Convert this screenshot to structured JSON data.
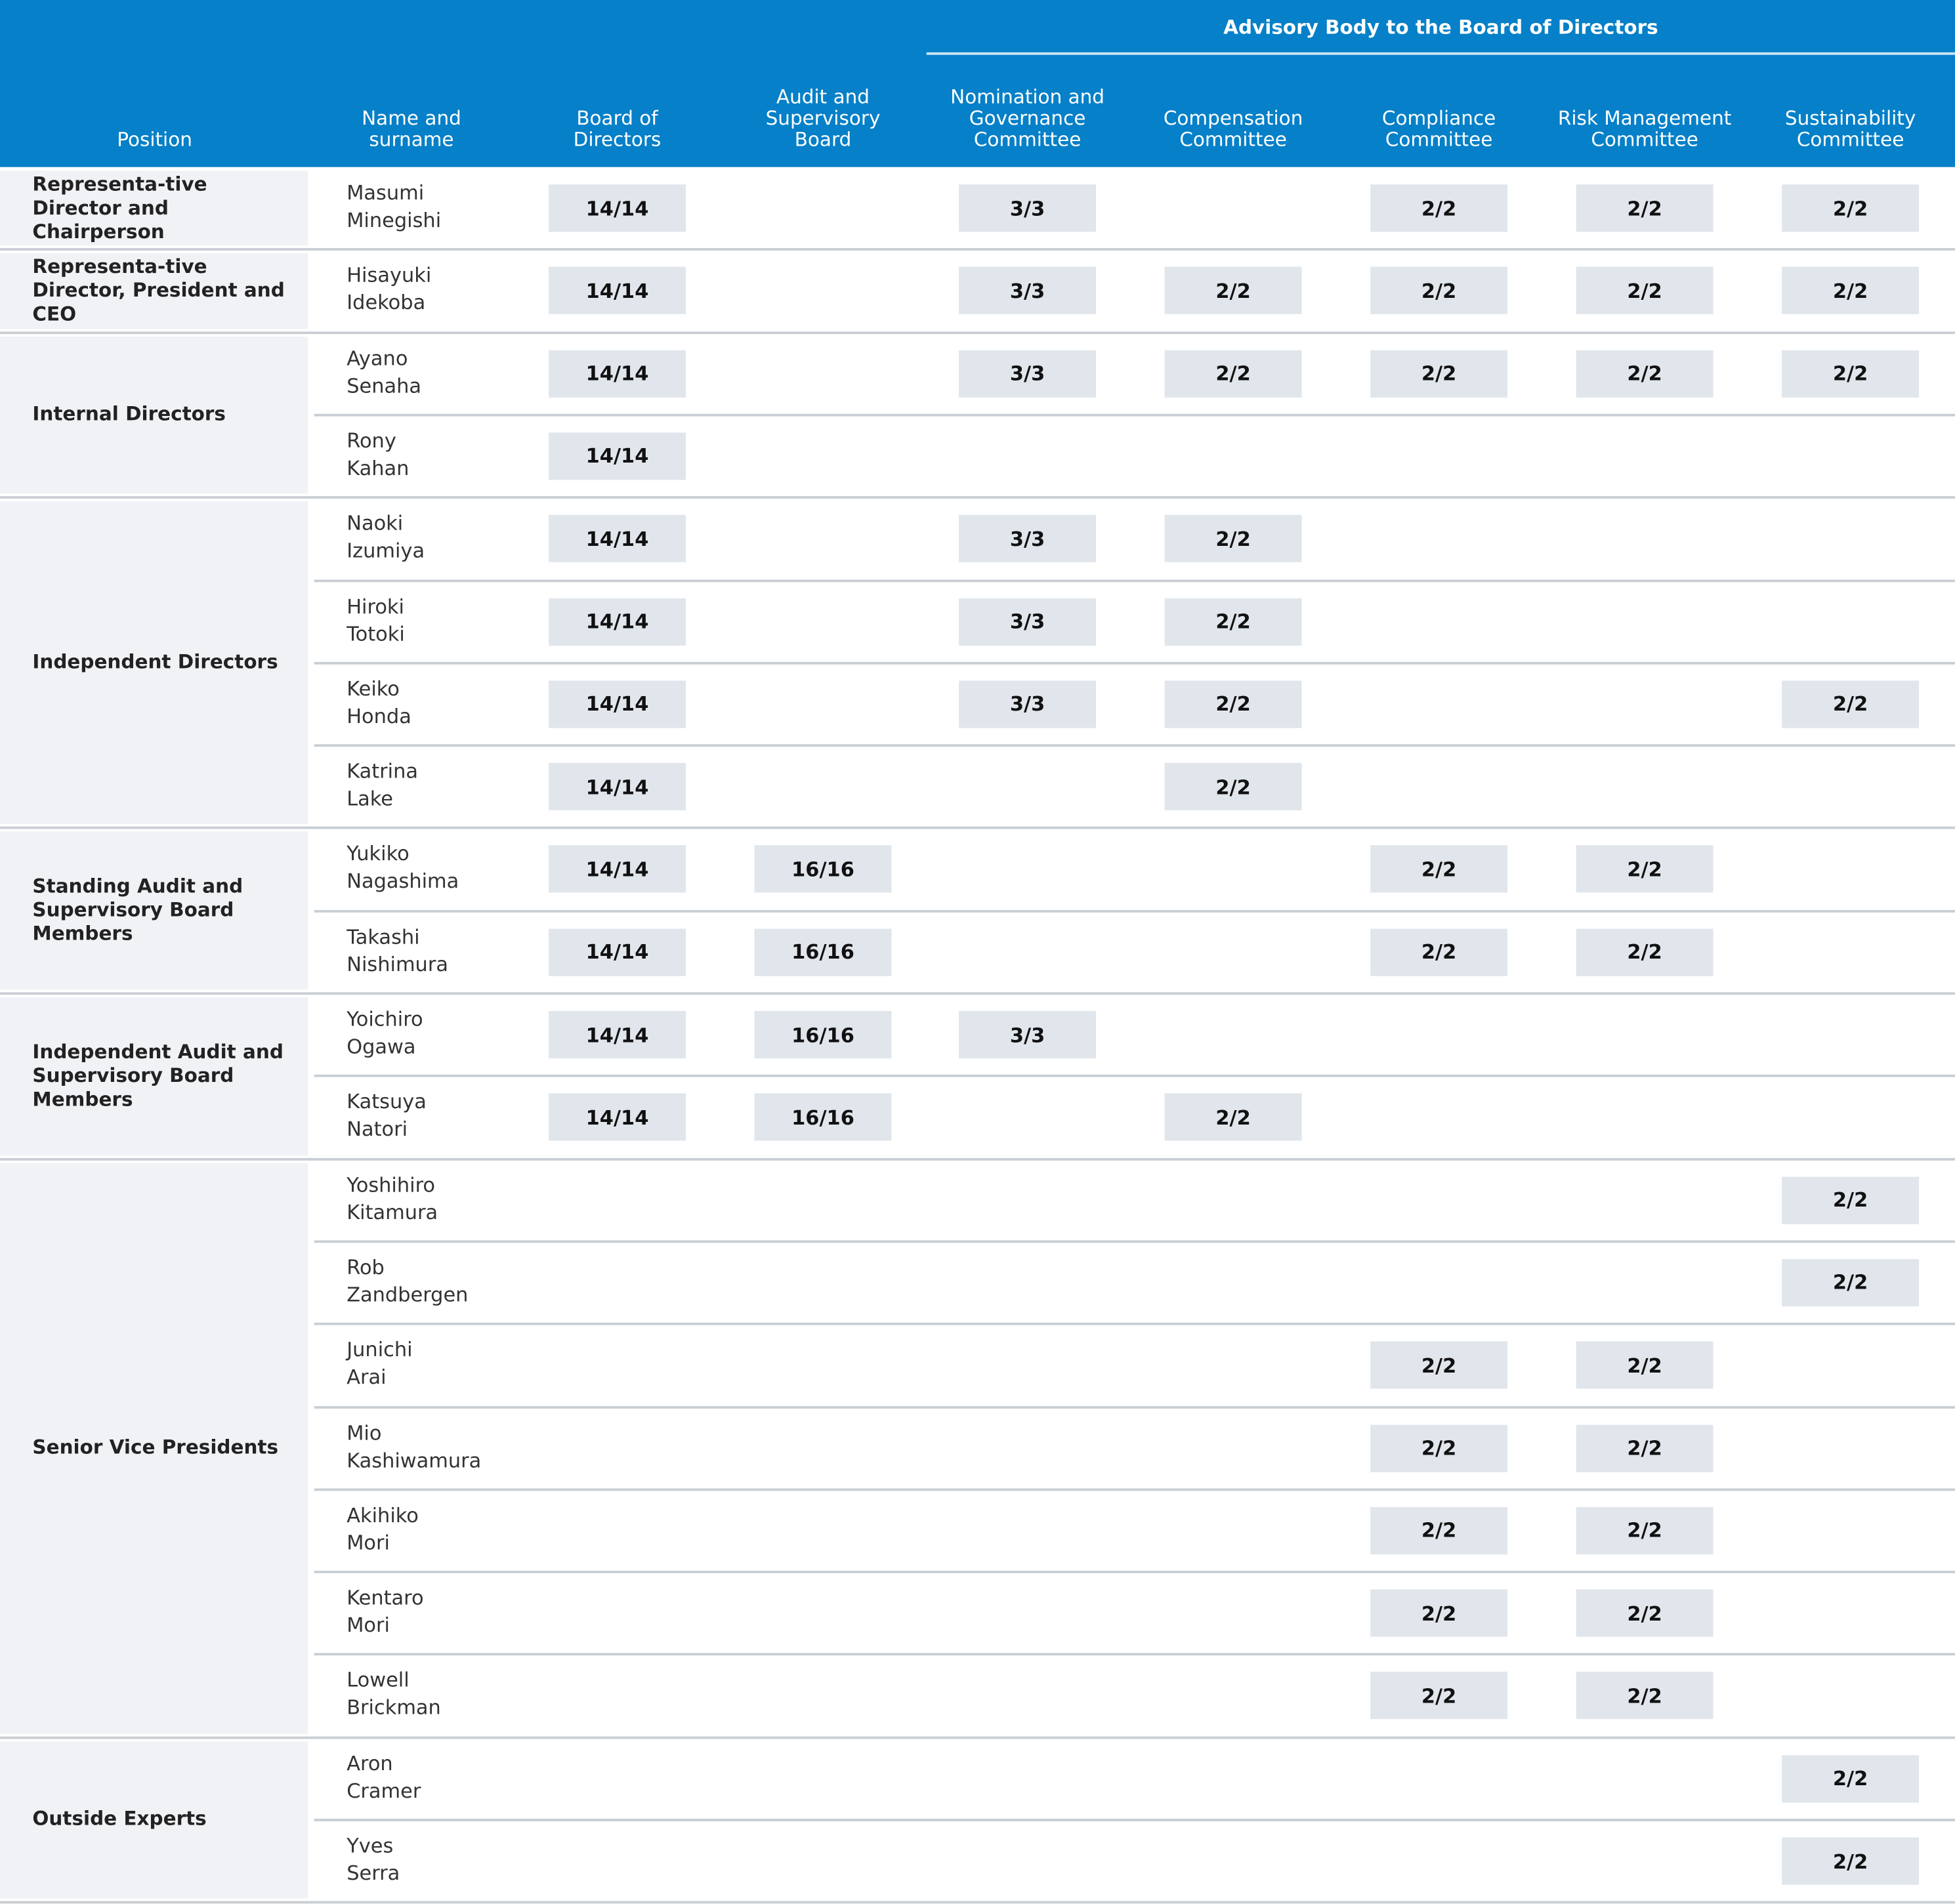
{
  "header": {
    "advisory": "Advisory Body to the Board of Directors",
    "columns": [
      "Position",
      "Name and surname",
      "Board of Directors",
      "Audit and Supervisory Board",
      "Nomination and Governance Committee",
      "Compensation Committee",
      "Compliance Committee",
      "Risk Management Committee",
      "Sustainability Committee"
    ]
  },
  "groups": [
    {
      "position": "Representa-tive Director and Chairperson",
      "members": [
        {
          "name": "Masumi Minegishi",
          "cells": [
            "14/14",
            null,
            "3/3",
            null,
            "2/2",
            "2/2",
            "2/2"
          ]
        }
      ]
    },
    {
      "position": "Representa-tive Director, President and CEO",
      "members": [
        {
          "name": "Hisayuki Idekoba",
          "cells": [
            "14/14",
            null,
            "3/3",
            "2/2",
            "2/2",
            "2/2",
            "2/2"
          ]
        }
      ]
    },
    {
      "position": "Internal Directors",
      "members": [
        {
          "name": "Ayano Senaha",
          "cells": [
            "14/14",
            null,
            "3/3",
            "2/2",
            "2/2",
            "2/2",
            "2/2"
          ]
        },
        {
          "name": "Rony Kahan",
          "cells": [
            "14/14",
            null,
            null,
            null,
            null,
            null,
            null
          ]
        }
      ]
    },
    {
      "position": "Independent Directors",
      "members": [
        {
          "name": "Naoki Izumiya",
          "cells": [
            "14/14",
            null,
            "3/3",
            "2/2",
            null,
            null,
            null
          ]
        },
        {
          "name": "Hiroki Totoki",
          "cells": [
            "14/14",
            null,
            "3/3",
            "2/2",
            null,
            null,
            null
          ]
        },
        {
          "name": "Keiko Honda",
          "cells": [
            "14/14",
            null,
            "3/3",
            "2/2",
            null,
            null,
            "2/2"
          ]
        },
        {
          "name": "Katrina Lake",
          "cells": [
            "14/14",
            null,
            null,
            "2/2",
            null,
            null,
            null
          ]
        }
      ]
    },
    {
      "position": "Standing Audit and Supervisory Board Members",
      "members": [
        {
          "name": "Yukiko Nagashima",
          "cells": [
            "14/14",
            "16/16",
            null,
            null,
            "2/2",
            "2/2",
            null
          ]
        },
        {
          "name": "Takashi Nishimura",
          "cells": [
            "14/14",
            "16/16",
            null,
            null,
            "2/2",
            "2/2",
            null
          ]
        }
      ]
    },
    {
      "position": "Independent Audit and Supervisory Board Members",
      "members": [
        {
          "name": "Yoichiro Ogawa",
          "cells": [
            "14/14",
            "16/16",
            "3/3",
            null,
            null,
            null,
            null
          ]
        },
        {
          "name": "Katsuya Natori",
          "cells": [
            "14/14",
            "16/16",
            null,
            "2/2",
            null,
            null,
            null
          ]
        }
      ]
    },
    {
      "position": "Senior Vice Presidents",
      "members": [
        {
          "name": "Yoshihiro Kitamura",
          "cells": [
            null,
            null,
            null,
            null,
            null,
            null,
            "2/2"
          ]
        },
        {
          "name": "Rob Zandbergen",
          "cells": [
            null,
            null,
            null,
            null,
            null,
            null,
            "2/2"
          ]
        },
        {
          "name": "Junichi Arai",
          "cells": [
            null,
            null,
            null,
            null,
            "2/2",
            "2/2",
            null
          ]
        },
        {
          "name": "Mio Kashiwamura",
          "cells": [
            null,
            null,
            null,
            null,
            "2/2",
            "2/2",
            null
          ]
        },
        {
          "name": "Akihiko Mori",
          "cells": [
            null,
            null,
            null,
            null,
            "2/2",
            "2/2",
            null
          ]
        },
        {
          "name": "Kentaro Mori",
          "cells": [
            null,
            null,
            null,
            null,
            "2/2",
            "2/2",
            null
          ]
        },
        {
          "name": "Lowell Brickman",
          "cells": [
            null,
            null,
            null,
            null,
            "2/2",
            "2/2",
            null
          ]
        }
      ]
    },
    {
      "position": "Outside Experts",
      "members": [
        {
          "name": "Aron Cramer",
          "cells": [
            null,
            null,
            null,
            null,
            null,
            null,
            "2/2"
          ]
        },
        {
          "name": "Yves Serra",
          "cells": [
            null,
            null,
            null,
            null,
            null,
            null,
            "2/2"
          ]
        }
      ]
    }
  ]
}
